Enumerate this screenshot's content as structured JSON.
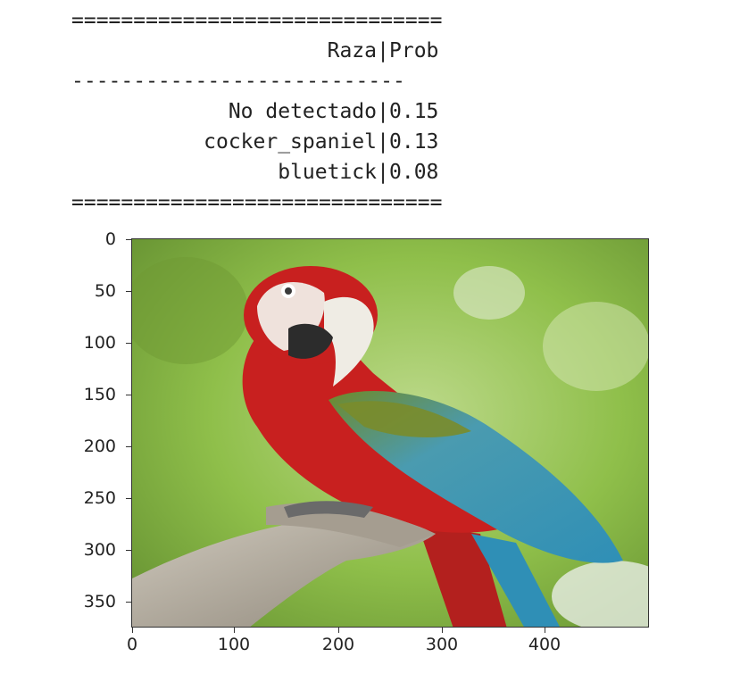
{
  "console": {
    "top_rule": "==============================",
    "mid_rule": "---------------------------",
    "bottom_rule": "==============================",
    "header": {
      "col1": "Raza",
      "col2": "Prob"
    },
    "separator": "|",
    "rows": [
      {
        "breed": "No detectado",
        "prob": "0.15"
      },
      {
        "breed": "cocker_spaniel",
        "prob": "0.13"
      },
      {
        "breed": "bluetick",
        "prob": "0.08"
      }
    ]
  },
  "image_plot": {
    "image_subject": "macaw-parrot-photo",
    "x_ticks": [
      "0",
      "100",
      "200",
      "300",
      "400"
    ],
    "y_ticks": [
      "0",
      "50",
      "100",
      "150",
      "200",
      "250",
      "300",
      "350"
    ],
    "colors": {
      "parrot_red": "#c8201f",
      "wing_blue": "#2f8fb6",
      "wing_green": "#6f8a2a",
      "background_green": "#8fbf4a",
      "branch": "#b9b2a6"
    }
  }
}
